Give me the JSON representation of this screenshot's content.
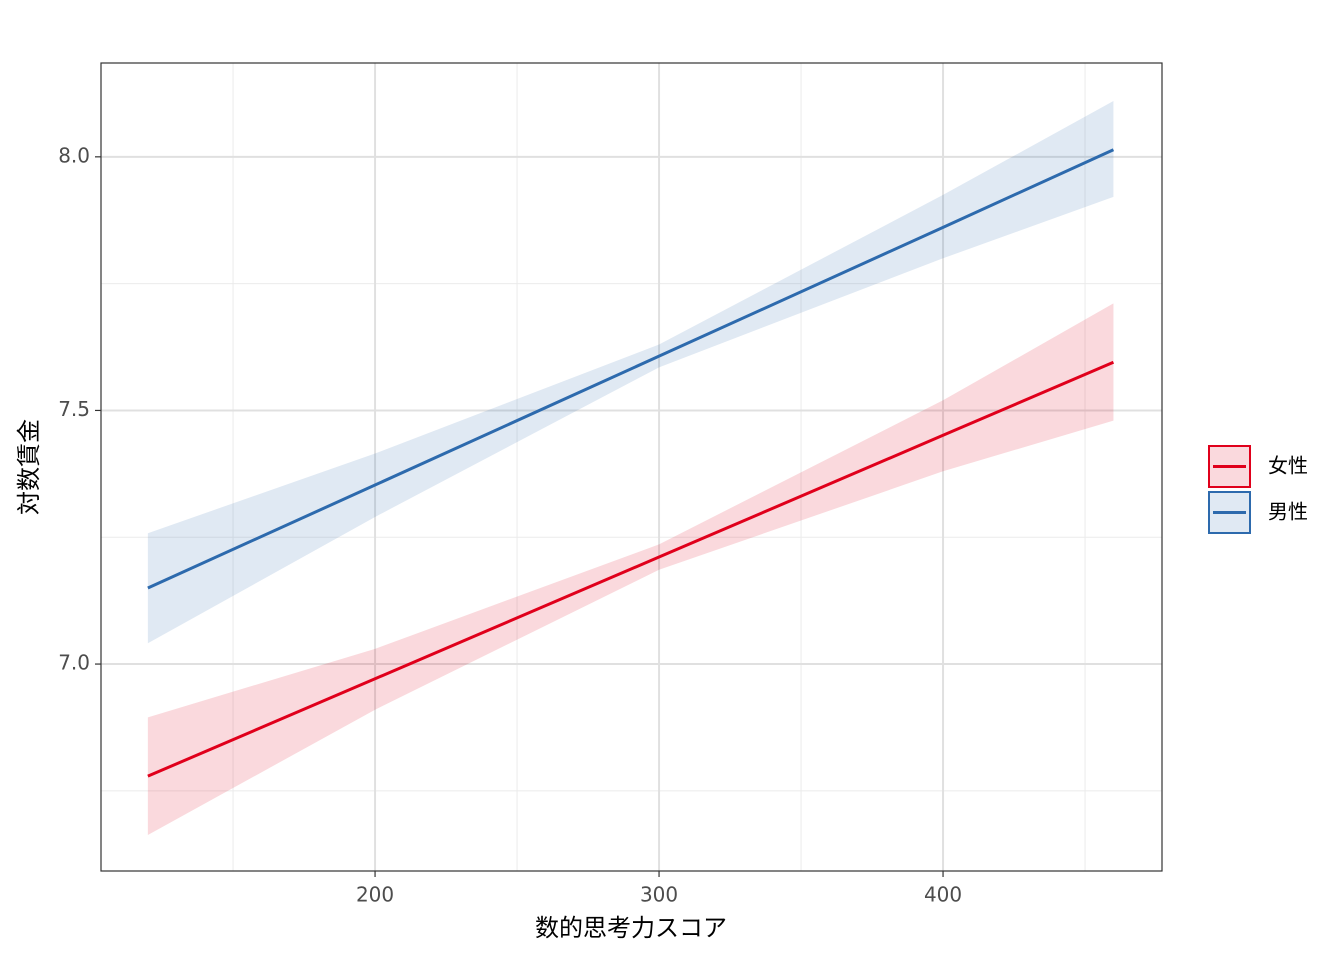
{
  "chart_data": {
    "type": "line",
    "xlabel": "数的思考力スコア",
    "ylabel": "対数賃金",
    "x": [
      120,
      200,
      300,
      400,
      460
    ],
    "series": [
      {
        "name": "女性",
        "color": "#e0001b",
        "values": [
          6.779,
          6.971,
          7.211,
          7.451,
          7.595
        ],
        "lower": [
          6.663,
          6.91,
          7.186,
          7.38,
          7.48
        ],
        "upper": [
          6.895,
          7.03,
          7.236,
          7.52,
          7.711
        ]
      },
      {
        "name": "男性",
        "color": "#2d6aad",
        "values": [
          7.15,
          7.353,
          7.607,
          7.861,
          8.014
        ],
        "lower": [
          7.041,
          7.29,
          7.585,
          7.8,
          7.921
        ],
        "upper": [
          7.258,
          7.415,
          7.63,
          7.925,
          8.11
        ]
      }
    ],
    "xlim": [
      103.5,
      477.1
    ],
    "ylim": [
      6.592,
      8.185
    ],
    "xticks": [
      200,
      300,
      400
    ],
    "yticks": [
      {
        "value": 7,
        "label": "7.0"
      },
      7.5,
      {
        "value": 8,
        "label": "8.0"
      }
    ],
    "x_minor_grid": [
      150,
      250,
      350,
      450
    ],
    "y_minor_grid": [
      6.75,
      7.25,
      7.75
    ],
    "grid": true,
    "legend": "right"
  }
}
